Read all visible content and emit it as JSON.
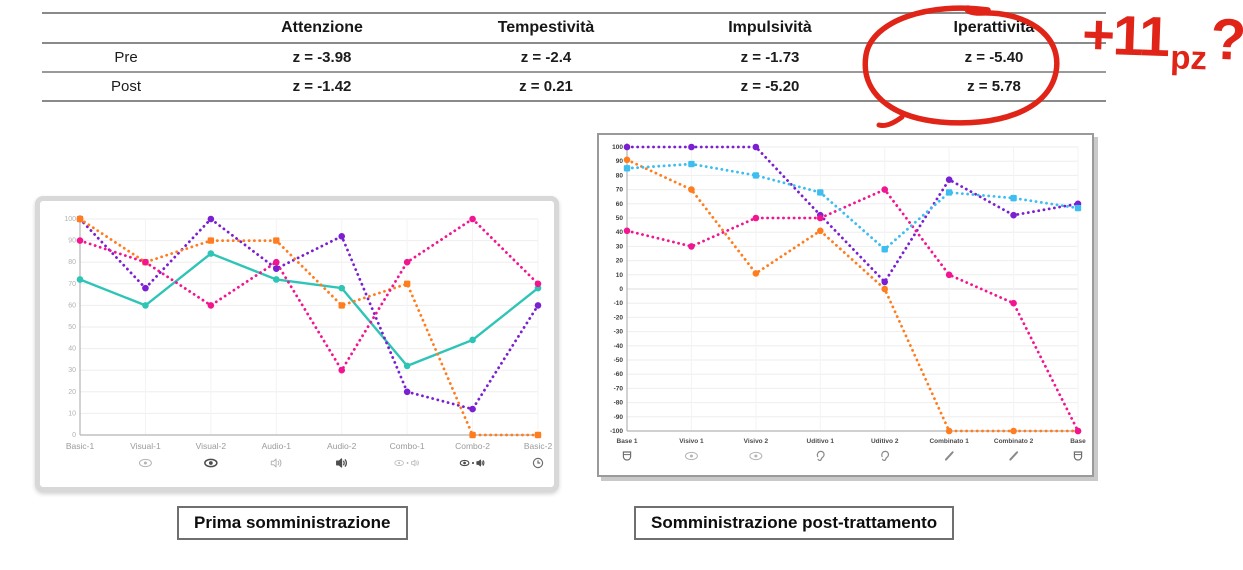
{
  "table": {
    "headers": [
      "",
      "Attenzione",
      "Tempestività",
      "Impulsività",
      "Iperattività"
    ],
    "rows": [
      {
        "label": "Pre",
        "values": [
          "z = -3.98",
          "z = -2.4",
          "z = -1.73",
          "z = -5.40"
        ]
      },
      {
        "label": "Post",
        "values": [
          "z = -1.42",
          "z = 0.21",
          "z = -5.20",
          "z = 5.78"
        ]
      }
    ]
  },
  "annotation": {
    "color": "#e02417",
    "text_plus": "+11",
    "text_sub": "pz",
    "text_q": "?",
    "full_text": "+11 pz ?",
    "circled_column": "Iperattività"
  },
  "captions": {
    "left": "Prima somministrazione",
    "right": "Somministrazione post-trattamento"
  },
  "colors": {
    "orange": "#ff7d1f",
    "magenta": "#f2158f",
    "purple": "#7a1fd1",
    "teal": "#2ec4b6",
    "cyan": "#3dbdf0",
    "annotation_red": "#e02417",
    "table_line_gray": "#8a8a8a"
  },
  "chart_data": [
    {
      "type": "line",
      "title": "Prima somministrazione",
      "categories": [
        "Basic-1",
        "Visual-1",
        "Visual-2",
        "Audio-1",
        "Audio-2",
        "Combo-1",
        "Combo-2",
        "Basic-2"
      ],
      "category_icons": [
        null,
        "eye-outline",
        "eye-bold",
        "speaker-outline",
        "speaker-bold",
        "eye-speaker-outline",
        "eye-speaker-bold",
        "clock"
      ],
      "xlabel": "",
      "ylabel": "",
      "ylim": [
        0,
        100
      ],
      "ytick_step": 10,
      "grid": true,
      "legend": false,
      "series": [
        {
          "name": "teal-solid",
          "color": "#2ec4b6",
          "style": "solid",
          "marker": "circle",
          "values": [
            72,
            60,
            84,
            72,
            68,
            32,
            44,
            68
          ]
        },
        {
          "name": "purple-dotted",
          "color": "#7a1fd1",
          "style": "dotted",
          "marker": "circle",
          "values": [
            100,
            68,
            100,
            77,
            92,
            20,
            12,
            60
          ]
        },
        {
          "name": "orange-dotted",
          "color": "#ff7d1f",
          "style": "dotted",
          "marker": "square",
          "values": [
            100,
            80,
            90,
            90,
            60,
            70,
            0,
            0
          ]
        },
        {
          "name": "magenta-dotted",
          "color": "#f2158f",
          "style": "dotted",
          "marker": "circle",
          "values": [
            90,
            80,
            60,
            80,
            30,
            80,
            100,
            70
          ]
        }
      ]
    },
    {
      "type": "line",
      "title": "Somministrazione post-trattamento",
      "categories": [
        "Base 1",
        "Visivo 1",
        "Visivo 2",
        "Uditivo 1",
        "Uditivo 2",
        "Combinato 1",
        "Combinato 2",
        "Base"
      ],
      "category_icons": [
        "cup",
        "eye-outline",
        "eye-outline",
        "ear",
        "ear",
        "pencil",
        "pencil",
        "cup"
      ],
      "xlabel": "",
      "ylabel": "",
      "ylim": [
        -100,
        100
      ],
      "ytick_step": 10,
      "grid": true,
      "legend": false,
      "series": [
        {
          "name": "purple-dotted",
          "color": "#7a1fd1",
          "style": "dotted",
          "marker": "circle",
          "values": [
            100,
            100,
            100,
            52,
            5,
            77,
            52,
            60
          ]
        },
        {
          "name": "orange-dotted",
          "color": "#ff7d1f",
          "style": "dotted",
          "marker": "circle",
          "values": [
            91,
            70,
            11,
            41,
            0,
            -100,
            -100,
            -100
          ]
        },
        {
          "name": "magenta-dotted",
          "color": "#f2158f",
          "style": "dotted",
          "marker": "circle",
          "values": [
            41,
            30,
            50,
            50,
            70,
            10,
            -10,
            -100
          ]
        },
        {
          "name": "cyan-dotted",
          "color": "#3dbdf0",
          "style": "dotted",
          "marker": "square",
          "values": [
            85,
            88,
            80,
            68,
            28,
            68,
            64,
            57
          ]
        }
      ]
    }
  ]
}
